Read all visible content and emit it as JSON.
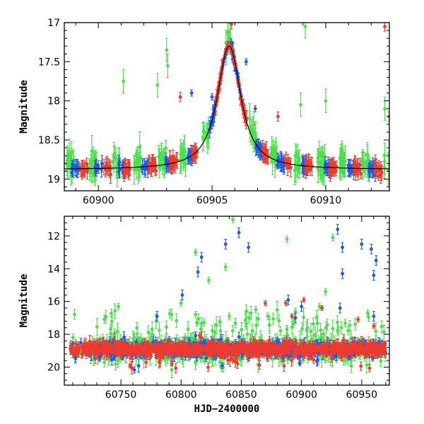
{
  "colors": {
    "g": "#4be04b",
    "b": "#1f5be0",
    "r": "#ee3b2f",
    "model": "#000000"
  },
  "chart_data": [
    {
      "type": "scatter",
      "title": "",
      "xlabel": "",
      "ylabel": "Magnitude",
      "xlim": [
        60898.5,
        60912.8
      ],
      "ylim": [
        19.15,
        17.0
      ],
      "y_inverted": true,
      "xticks_major": [
        60900,
        60905,
        60910
      ],
      "xtick_labels": [
        "60900",
        "60905",
        "60910"
      ],
      "yticks_major": [
        17,
        17.5,
        18,
        18.5,
        19
      ],
      "ytick_labels": [
        "17",
        "17.5",
        "18",
        "18.5",
        "19"
      ],
      "model_curve": {
        "name": "microlensing fit",
        "baseline": 18.88,
        "peak_time": 60905.75,
        "peak_mag": 17.3,
        "width_days": 0.45
      },
      "series": [
        {
          "name": "green",
          "color_key": "g"
        },
        {
          "name": "blue",
          "color_key": "b"
        },
        {
          "name": "red",
          "color_key": "r"
        }
      ],
      "outliers_green": [
        [
          60901.1,
          17.75
        ],
        [
          60903.0,
          17.35
        ],
        [
          60903.05,
          17.55
        ],
        [
          60909.1,
          17.05
        ],
        [
          60908.9,
          18.05
        ],
        [
          60910.0,
          18.0
        ],
        [
          60902.6,
          17.8
        ],
        [
          60912.6,
          18.1
        ]
      ],
      "outliers_blue": [
        [
          60904.1,
          17.9
        ],
        [
          60906.5,
          17.5
        ],
        [
          60906.9,
          18.1
        ],
        [
          60905.0,
          17.95
        ]
      ],
      "outliers_red": [
        [
          60903.6,
          17.95
        ],
        [
          60912.6,
          17.05
        ],
        [
          60905.85,
          17.02
        ],
        [
          60907.9,
          18.2
        ],
        [
          60912.8,
          18.2
        ]
      ]
    },
    {
      "type": "scatter",
      "title": "",
      "xlabel": "HJD−2400000",
      "ylabel": "Magnitude",
      "xlim": [
        60703,
        60973
      ],
      "ylim": [
        21.1,
        10.8
      ],
      "y_inverted": true,
      "xticks_major": [
        60750,
        60800,
        60850,
        60900,
        60950
      ],
      "xtick_labels": [
        "60750",
        "60800",
        "60850",
        "60900",
        "60950"
      ],
      "yticks_major": [
        12,
        14,
        16,
        18,
        20
      ],
      "ytick_labels": [
        "12",
        "14",
        "16",
        "18",
        "20"
      ],
      "baseline_mag": 18.9,
      "series": [
        {
          "name": "green",
          "color_key": "g"
        },
        {
          "name": "blue",
          "color_key": "b"
        },
        {
          "name": "red",
          "color_key": "r"
        }
      ],
      "outliers_green": [
        [
          60843,
          11.0
        ],
        [
          60888,
          12.2
        ],
        [
          60926,
          12.1
        ],
        [
          60812,
          13.0
        ],
        [
          60823,
          14.7
        ],
        [
          60837,
          13.9
        ],
        [
          60920,
          15.4
        ],
        [
          60748,
          16.3
        ],
        [
          60812,
          16.8
        ],
        [
          60862,
          16.5
        ],
        [
          60955,
          16.7
        ],
        [
          60813,
          17.3
        ],
        [
          60776,
          18.0
        ],
        [
          60800,
          16.1
        ],
        [
          60840,
          16.9
        ],
        [
          60872,
          16.9
        ],
        [
          60895,
          16.6
        ],
        [
          60915,
          16.3
        ],
        [
          60930,
          17.8
        ]
      ],
      "outliers_blue": [
        [
          60848,
          11.8
        ],
        [
          60930,
          11.6
        ],
        [
          60837,
          12.5
        ],
        [
          60856,
          12.7
        ],
        [
          60934,
          12.7
        ],
        [
          60950,
          12.5
        ],
        [
          60817,
          13.3
        ],
        [
          60814,
          14.2
        ],
        [
          60934,
          14.3
        ],
        [
          60960,
          14.4
        ],
        [
          60962,
          13.5
        ],
        [
          60958,
          12.8
        ],
        [
          60801,
          15.6
        ],
        [
          60889,
          15.9
        ],
        [
          60932,
          16.4
        ],
        [
          60900,
          16.3
        ],
        [
          60780,
          16.9
        ],
        [
          60960,
          16.9
        ],
        [
          60895,
          17.0
        ]
      ],
      "outliers_red": [
        [
          60870,
          16.1
        ],
        [
          60887,
          16.1
        ],
        [
          60902,
          15.9
        ],
        [
          60917,
          16.4
        ],
        [
          60892,
          16.9
        ],
        [
          60947,
          17.1
        ],
        [
          60960,
          17.5
        ]
      ]
    }
  ]
}
